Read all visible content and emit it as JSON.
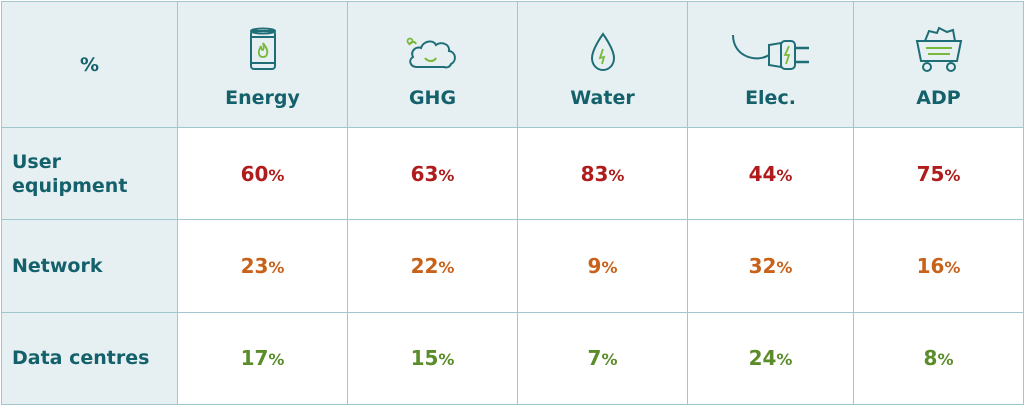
{
  "chart_data": {
    "type": "table",
    "corner_label": "%",
    "columns": [
      {
        "label": "Energy",
        "icon": "oil-barrel-flame-icon"
      },
      {
        "label": "GHG",
        "icon": "cloud-icon"
      },
      {
        "label": "Water",
        "icon": "water-drop-icon"
      },
      {
        "label": "Elec.",
        "icon": "electric-plug-icon"
      },
      {
        "label": "ADP",
        "icon": "mine-cart-icon"
      }
    ],
    "rows": [
      {
        "label": "User equipment",
        "values": [
          60,
          63,
          83,
          44,
          75
        ],
        "color": "#b01c1c"
      },
      {
        "label": "Network",
        "values": [
          23,
          22,
          9,
          32,
          16
        ],
        "color": "#c8621a"
      },
      {
        "label": "Data centres",
        "values": [
          17,
          15,
          7,
          24,
          8
        ],
        "color": "#5b8c2a"
      }
    ],
    "unit": "%",
    "colors": {
      "header_bg": "#e6f0f2",
      "header_text": "#14616b",
      "border": "#9fc7cd",
      "icon_stroke": "#1f6e77",
      "icon_accent": "#7ab83a"
    }
  }
}
